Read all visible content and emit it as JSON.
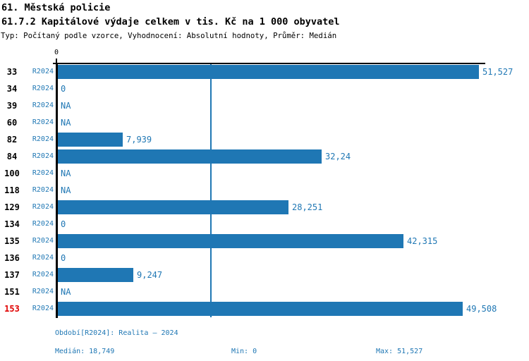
{
  "header": {
    "title_line1": "61. Městská policie",
    "title_line2": "61.7.2 Kapitálové výdaje celkem v tis. Kč na 1 000 obyvatel",
    "subtitle": "Typ: Počítaný podle vzorce, Vyhodnocení: Absolutní hodnoty, Průměr: Medián"
  },
  "chart_data": {
    "type": "bar",
    "orientation": "horizontal",
    "title": "61.7.2 Kapitálové výdaje celkem v tis. Kč na 1 000 obyvatel",
    "xlabel": "",
    "ylabel": "",
    "grid": false,
    "axis": {
      "min": 0,
      "max": 51527,
      "tick_labels": [
        "0"
      ],
      "median_line_value": 18749
    },
    "series_label": "R2024",
    "bar_color": "#1f77b4",
    "text_blue": "#1f77b4",
    "highlight_color": "#e00000",
    "categories": [
      "33",
      "34",
      "39",
      "60",
      "82",
      "84",
      "100",
      "118",
      "129",
      "134",
      "135",
      "136",
      "137",
      "151",
      "153"
    ],
    "rows": [
      {
        "category": "33",
        "series": "R2024",
        "value": 51527,
        "label": "51,527",
        "highlighted": false
      },
      {
        "category": "34",
        "series": "R2024",
        "value": 0,
        "label": "0",
        "highlighted": false
      },
      {
        "category": "39",
        "series": "R2024",
        "value": null,
        "label": "NA",
        "highlighted": false
      },
      {
        "category": "60",
        "series": "R2024",
        "value": null,
        "label": "NA",
        "highlighted": false
      },
      {
        "category": "82",
        "series": "R2024",
        "value": 7939,
        "label": "7,939",
        "highlighted": false
      },
      {
        "category": "84",
        "series": "R2024",
        "value": 32240,
        "label": "32,24",
        "highlighted": false
      },
      {
        "category": "100",
        "series": "R2024",
        "value": null,
        "label": "NA",
        "highlighted": false
      },
      {
        "category": "118",
        "series": "R2024",
        "value": null,
        "label": "NA",
        "highlighted": false
      },
      {
        "category": "129",
        "series": "R2024",
        "value": 28251,
        "label": "28,251",
        "highlighted": false
      },
      {
        "category": "134",
        "series": "R2024",
        "value": 0,
        "label": "0",
        "highlighted": false
      },
      {
        "category": "135",
        "series": "R2024",
        "value": 42315,
        "label": "42,315",
        "highlighted": false
      },
      {
        "category": "136",
        "series": "R2024",
        "value": 0,
        "label": "0",
        "highlighted": false
      },
      {
        "category": "137",
        "series": "R2024",
        "value": 9247,
        "label": "9,247",
        "highlighted": false
      },
      {
        "category": "151",
        "series": "R2024",
        "value": null,
        "label": "NA",
        "highlighted": false
      },
      {
        "category": "153",
        "series": "R2024",
        "value": 49508,
        "label": "49,508",
        "highlighted": true
      }
    ]
  },
  "footer": {
    "period_line": "Období[R2024]: Realita – 2024",
    "median_label": "Medián: 18,749",
    "min_label": "Min: 0",
    "max_label": "Max: 51,527"
  }
}
